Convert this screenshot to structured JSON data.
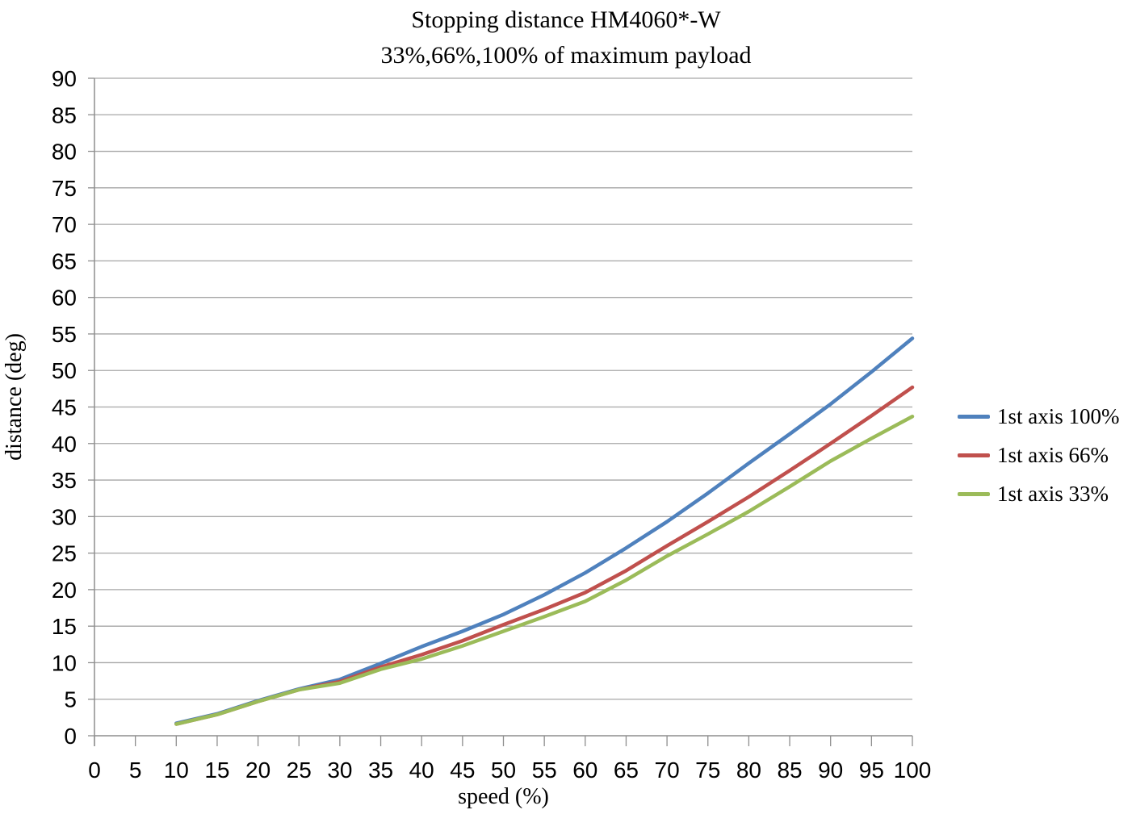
{
  "page": {
    "background": "#FFFFFF"
  },
  "chart_data": {
    "type": "line",
    "title": "Stopping distance HM4060*-W",
    "subtitle": "33%,66%,100% of maximum payload",
    "xlabel": "speed (%)",
    "ylabel": "distance (deg)",
    "xlim": [
      0,
      100
    ],
    "ylim": [
      0,
      90
    ],
    "x_ticks": [
      0,
      5,
      10,
      15,
      20,
      25,
      30,
      35,
      40,
      45,
      50,
      55,
      60,
      65,
      70,
      75,
      80,
      85,
      90,
      95,
      100
    ],
    "y_ticks": [
      0,
      5,
      10,
      15,
      20,
      25,
      30,
      35,
      40,
      45,
      50,
      55,
      60,
      65,
      70,
      75,
      80,
      85,
      90
    ],
    "grid": "horizontal-only",
    "legend_position": "right-outside",
    "colors": {
      "gridline": "#A6A6A6",
      "axis": "#8E8E8E",
      "text": "#000000",
      "background": "#FFFFFF"
    },
    "x": [
      10,
      15,
      20,
      25,
      30,
      35,
      40,
      45,
      50,
      55,
      60,
      65,
      70,
      75,
      80,
      85,
      90,
      95,
      100
    ],
    "series": [
      {
        "name": "1st axis 100%",
        "color": "#4F81BD",
        "values": [
          1.7,
          3.0,
          4.8,
          6.4,
          7.7,
          9.9,
          12.2,
          14.3,
          16.6,
          19.3,
          22.3,
          25.7,
          29.3,
          33.2,
          37.3,
          41.3,
          45.4,
          49.8,
          54.4
        ]
      },
      {
        "name": "1st axis 66%",
        "color": "#C0504D",
        "values": [
          1.6,
          2.9,
          4.7,
          6.3,
          7.4,
          9.4,
          11.1,
          13.0,
          15.2,
          17.3,
          19.6,
          22.6,
          26.0,
          29.3,
          32.7,
          36.3,
          40.0,
          43.8,
          47.7
        ]
      },
      {
        "name": "1st axis 33%",
        "color": "#9BBB59",
        "values": [
          1.6,
          2.9,
          4.7,
          6.3,
          7.2,
          9.1,
          10.5,
          12.3,
          14.3,
          16.3,
          18.4,
          21.3,
          24.6,
          27.6,
          30.7,
          34.1,
          37.6,
          40.7,
          43.7
        ]
      }
    ]
  }
}
